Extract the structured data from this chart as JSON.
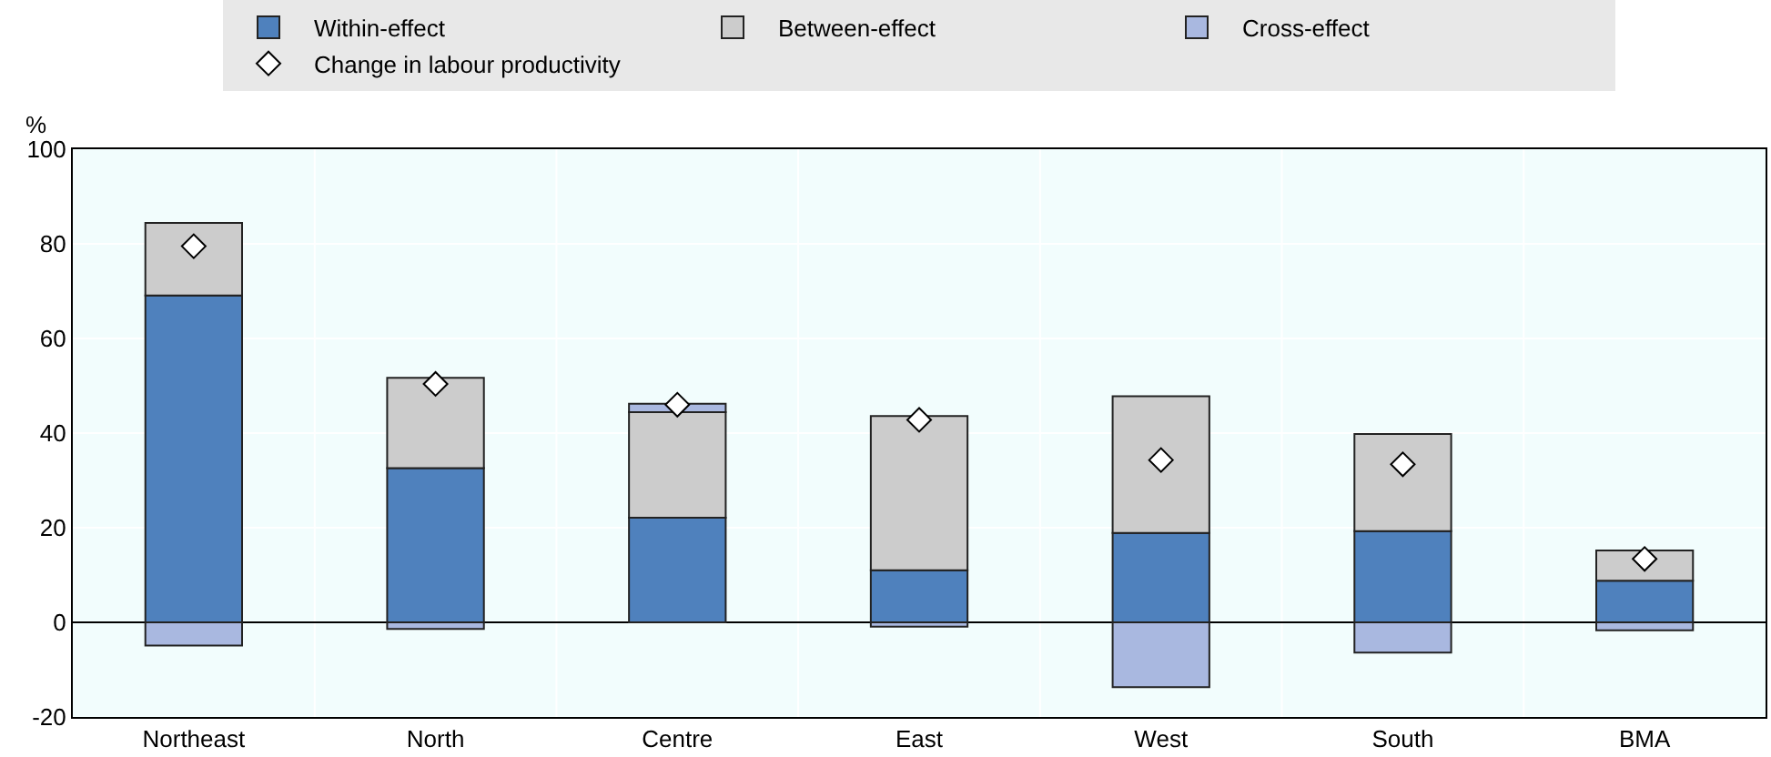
{
  "chart_data": {
    "type": "bar",
    "stacked": true,
    "ylabel": "%",
    "categories": [
      "Northeast",
      "North",
      "Centre",
      "East",
      "West",
      "South",
      "BMA"
    ],
    "series": [
      {
        "name": "Within-effect",
        "color": "#4f81bd",
        "values": [
          69.1,
          32.6,
          22.1,
          11.0,
          18.9,
          19.3,
          8.8
        ]
      },
      {
        "name": "Between-effect",
        "color": "#cccccc",
        "values": [
          15.3,
          19.1,
          22.3,
          32.6,
          28.9,
          20.5,
          6.4
        ]
      },
      {
        "name": "Cross-effect",
        "color": "#a9b8e0",
        "values": [
          -4.9,
          -1.4,
          1.8,
          -0.9,
          -13.7,
          -6.4,
          -1.7
        ]
      },
      {
        "name": "Change in labour productivity",
        "type": "scatter",
        "marker": "diamond",
        "color": "#ffffff",
        "values": [
          79.5,
          50.4,
          46.0,
          42.8,
          34.3,
          33.4,
          13.4
        ]
      }
    ],
    "ylim": [
      -20,
      100
    ],
    "yticks": [
      -20,
      0,
      20,
      40,
      60,
      80,
      100
    ],
    "grid": true,
    "legend": "top"
  }
}
